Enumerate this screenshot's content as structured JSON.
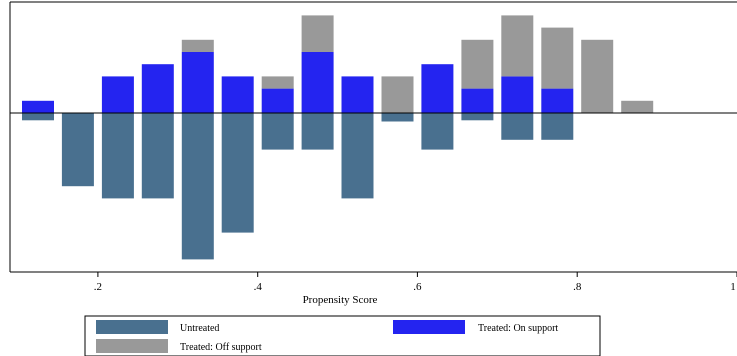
{
  "chart_data": {
    "type": "bar",
    "title": "",
    "xlabel": "Propensity Score",
    "ylabel": "",
    "xlim": [
      0.09,
      1.0
    ],
    "ylim": [
      -6.1,
      4.0
    ],
    "x_ticks": [
      ".2",
      ".4",
      ".6",
      ".8",
      "1"
    ],
    "x_tick_values": [
      0.2,
      0.4,
      0.6,
      0.8,
      1.0
    ],
    "bin_width": 0.05,
    "grid": false,
    "legend_position": "bottom",
    "colors": {
      "untreated": "#49708f",
      "treated_on_support": "#2424f0",
      "treated_off_support": "#999999"
    },
    "series": [
      {
        "name": "Untreated",
        "bins": [
          {
            "x": 0.125,
            "value": -0.3
          },
          {
            "x": 0.175,
            "value": -3.0
          },
          {
            "x": 0.225,
            "value": -3.5
          },
          {
            "x": 0.275,
            "value": -3.5
          },
          {
            "x": 0.325,
            "value": -6.0
          },
          {
            "x": 0.375,
            "value": -4.9
          },
          {
            "x": 0.425,
            "value": -1.5
          },
          {
            "x": 0.475,
            "value": -1.5
          },
          {
            "x": 0.525,
            "value": -3.5
          },
          {
            "x": 0.575,
            "value": -0.35
          },
          {
            "x": 0.625,
            "value": -1.5
          },
          {
            "x": 0.675,
            "value": -0.3
          },
          {
            "x": 0.725,
            "value": -1.1
          },
          {
            "x": 0.775,
            "value": -1.1
          }
        ]
      },
      {
        "name": "Treated: On support",
        "bins": [
          {
            "x": 0.125,
            "value": 0.5
          },
          {
            "x": 0.225,
            "value": 1.5
          },
          {
            "x": 0.275,
            "value": 2.0
          },
          {
            "x": 0.325,
            "value": 2.5
          },
          {
            "x": 0.375,
            "value": 1.5
          },
          {
            "x": 0.425,
            "value": 1.0
          },
          {
            "x": 0.475,
            "value": 2.5
          },
          {
            "x": 0.525,
            "value": 1.5
          },
          {
            "x": 0.625,
            "value": 2.0
          },
          {
            "x": 0.675,
            "value": 1.0
          },
          {
            "x": 0.725,
            "value": 1.5
          },
          {
            "x": 0.775,
            "value": 1.0
          }
        ]
      },
      {
        "name": "Treated: Off support",
        "bins": [
          {
            "x": 0.325,
            "base": 2.5,
            "value": 0.5
          },
          {
            "x": 0.425,
            "base": 1.0,
            "value": 0.5
          },
          {
            "x": 0.475,
            "base": 2.5,
            "value": 1.5
          },
          {
            "x": 0.575,
            "base": 0.0,
            "value": 1.5
          },
          {
            "x": 0.675,
            "base": 1.0,
            "value": 2.0
          },
          {
            "x": 0.725,
            "base": 1.5,
            "value": 2.5
          },
          {
            "x": 0.775,
            "base": 1.0,
            "value": 2.5
          },
          {
            "x": 0.825,
            "base": 0.0,
            "value": 3.0
          },
          {
            "x": 0.875,
            "base": 0.0,
            "value": 0.5
          }
        ]
      }
    ],
    "legend": {
      "items": [
        "Untreated",
        "Treated: On support",
        "Treated: Off support"
      ]
    }
  }
}
